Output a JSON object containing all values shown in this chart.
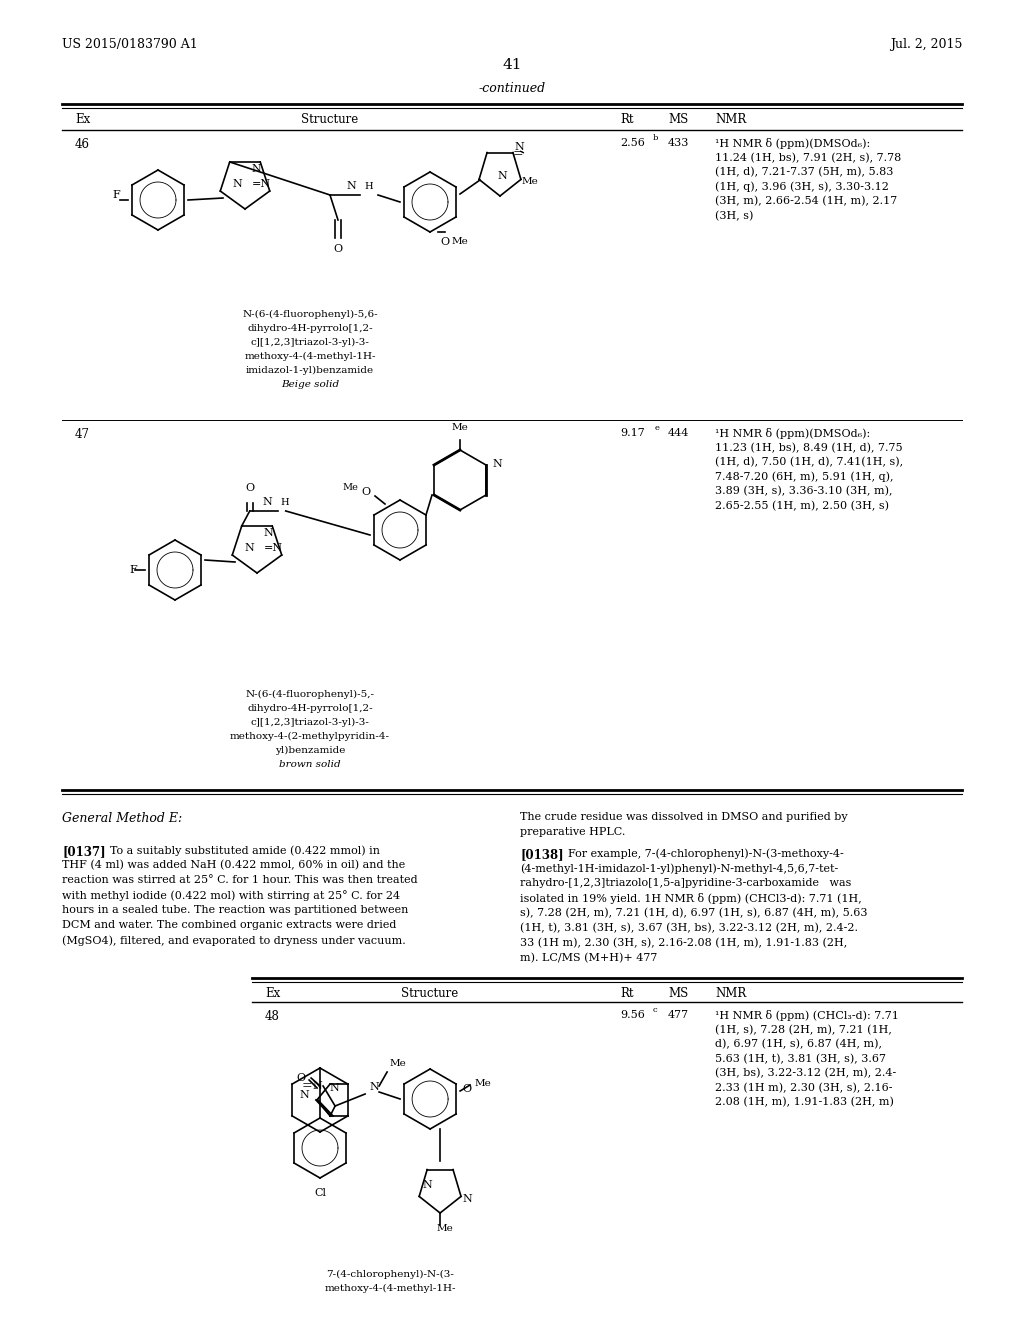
{
  "page_header_left": "US 2015/0183790 A1",
  "page_header_right": "Jul. 2, 2015",
  "page_number": "41",
  "continued_label": "-continued",
  "ex46_rt": "2.56",
  "ex46_rt_sup": "b",
  "ex46_ms": "433",
  "ex46_nmr": [
    "1H NMR δ (ppm)(DMSOd6):",
    "11.24 (1H, bs), 7.91 (2H, s), 7.78",
    "(1H, d), 7.21-7.37 (5H, m), 5.83",
    "(1H, q), 3.96 (3H, s), 3.30-3.12",
    "(3H, m), 2.66-2.54 (1H, m), 2.17",
    "(3H, s)"
  ],
  "ex46_name": [
    "N-(6-(4-fluorophenyl)-5,6-",
    "dihydro-4H-pyrrolo[1,2-",
    "c][1,2,3]triazol-3-yl)-3-",
    "methoxy-4-(4-methyl-1H-",
    "imidazol-1-yl)benzamide",
    "Beige solid"
  ],
  "ex47_rt": "9.17",
  "ex47_rt_sup": "e",
  "ex47_ms": "444",
  "ex47_nmr": [
    "1H NMR δ (ppm)(DMSOd6):",
    "11.23 (1H, bs), 8.49 (1H, d), 7.75",
    "(1H, d), 7.50 (1H, d), 7.41(1H, s),",
    "7.48-7.20 (6H, m), 5.91 (1H, q),",
    "3.89 (3H, s), 3.36-3.10 (3H, m),",
    "2.65-2.55 (1H, m), 2.50 (3H, s)"
  ],
  "ex47_name": [
    "N-(6-(4-fluorophenyl)-5,-",
    "dihydro-4H-pyrrolo[1,2-",
    "c][1,2,3]triazol-3-yl)-3-",
    "methoxy-4-(2-methylpyridin-4-",
    "yl)benzamide",
    "brown solid"
  ],
  "ex48_rt": "9.56",
  "ex48_rt_sup": "c",
  "ex48_ms": "477",
  "ex48_nmr": [
    "1H NMR δ (ppm) (CHCl3-d): 7.71",
    "(1H, s), 7.28 (2H, m), 7.21 (1H,",
    "d), 6.97 (1H, s), 6.87 (4H, m),",
    "5.63 (1H, t), 3.81 (3H, s), 3.67",
    "(3H, bs), 3.22-3.12 (2H, m), 2.4-",
    "2.33 (1H m), 2.30 (3H, s), 2.16-",
    "2.08 (1H, m), 1.91-1.83 (2H, m)"
  ],
  "ex48_name": [
    "7-(4-chlorophenyl)-N-(3-",
    "methoxy-4-(4-methyl-1H-"
  ],
  "p137_text": [
    "[0137]",
    "To a suitably substituted amide (0.422 mmol) in",
    "THF (4 ml) was added NaH (0.422 mmol, 60% in oil) and the",
    "reaction was stirred at 25° C. for 1 hour. This was then treated",
    "with methyl iodide (0.422 mol) with stirring at 25° C. for 24",
    "hours in a sealed tube. The reaction was partitioned between",
    "DCM and water. The combined organic extracts were dried",
    "(MgSO4), filtered, and evaporated to dryness under vacuum."
  ],
  "p138_left": [
    "The crude residue was dissolved in DMSO and purified by",
    "preparative HPLC."
  ],
  "p138_right": [
    "[0138]",
    "For example, 7-(4-chlorophenyl)-N-(3-methoxy-4-",
    "(4-methyl-1H-imidazol-1-yl)phenyl)-N-methyl-4,5,6,7-tet-",
    "rahydro-[1,2,3]triazolo[1,5-a]pyridine-3-carboxamide   was",
    "isolated in 19% yield. 1H NMR δ (ppm) (CHCl3-d): 7.71 (1H,",
    "s), 7.28 (2H, m), 7.21 (1H, d), 6.97 (1H, s), 6.87 (4H, m), 5.63",
    "(1H, t), 3.81 (3H, s), 3.67 (3H, bs), 3.22-3.12 (2H, m), 2.4-2.",
    "33 (1H m), 2.30 (3H, s), 2.16-2.08 (1H, m), 1.91-1.83 (2H,",
    "m). LC/MS (M+H)+ 477"
  ]
}
